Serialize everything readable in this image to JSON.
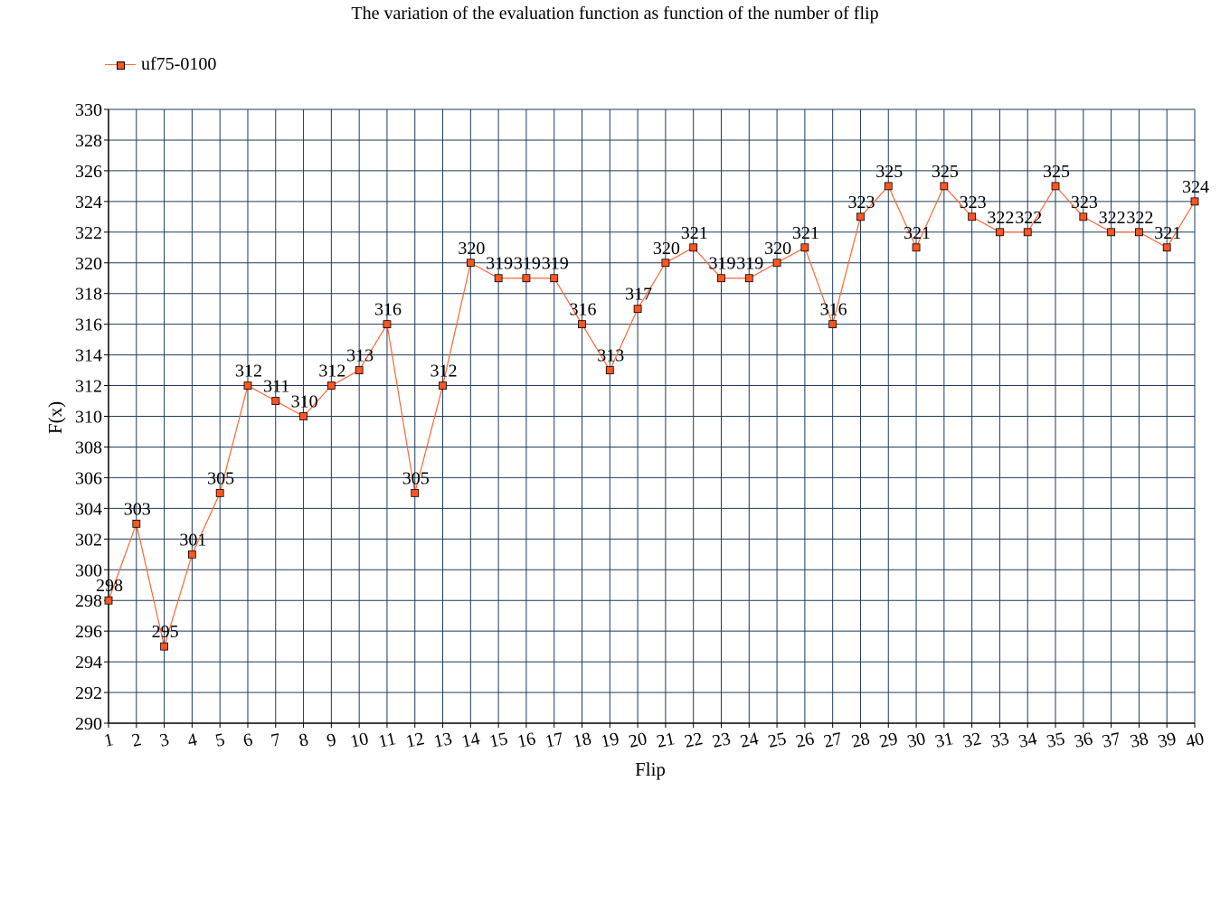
{
  "chart_data": {
    "type": "line",
    "title": "The variation of the evaluation function as function of the number of flip",
    "xlabel": "Flip",
    "ylabel": "F(x)",
    "x": [
      1,
      2,
      3,
      4,
      5,
      6,
      7,
      8,
      9,
      10,
      11,
      12,
      13,
      14,
      15,
      16,
      17,
      18,
      19,
      20,
      21,
      22,
      23,
      24,
      25,
      26,
      27,
      28,
      29,
      30,
      31,
      32,
      33,
      34,
      35,
      36,
      37,
      38,
      39,
      40
    ],
    "ylim": [
      290,
      330
    ],
    "ytick_step": 2,
    "grid": true,
    "legend_position": "top-left",
    "series": [
      {
        "name": "uf75-0100",
        "color": "#ff6633",
        "marker_color": "#ff5522",
        "values": [
          298,
          303,
          295,
          301,
          305,
          312,
          311,
          310,
          312,
          313,
          316,
          305,
          312,
          320,
          319,
          319,
          319,
          316,
          313,
          317,
          320,
          321,
          319,
          319,
          320,
          321,
          316,
          323,
          325,
          321,
          325,
          323,
          322,
          322,
          325,
          323,
          322,
          322,
          321,
          324
        ]
      }
    ],
    "grid_color": "#1f3b5a"
  }
}
